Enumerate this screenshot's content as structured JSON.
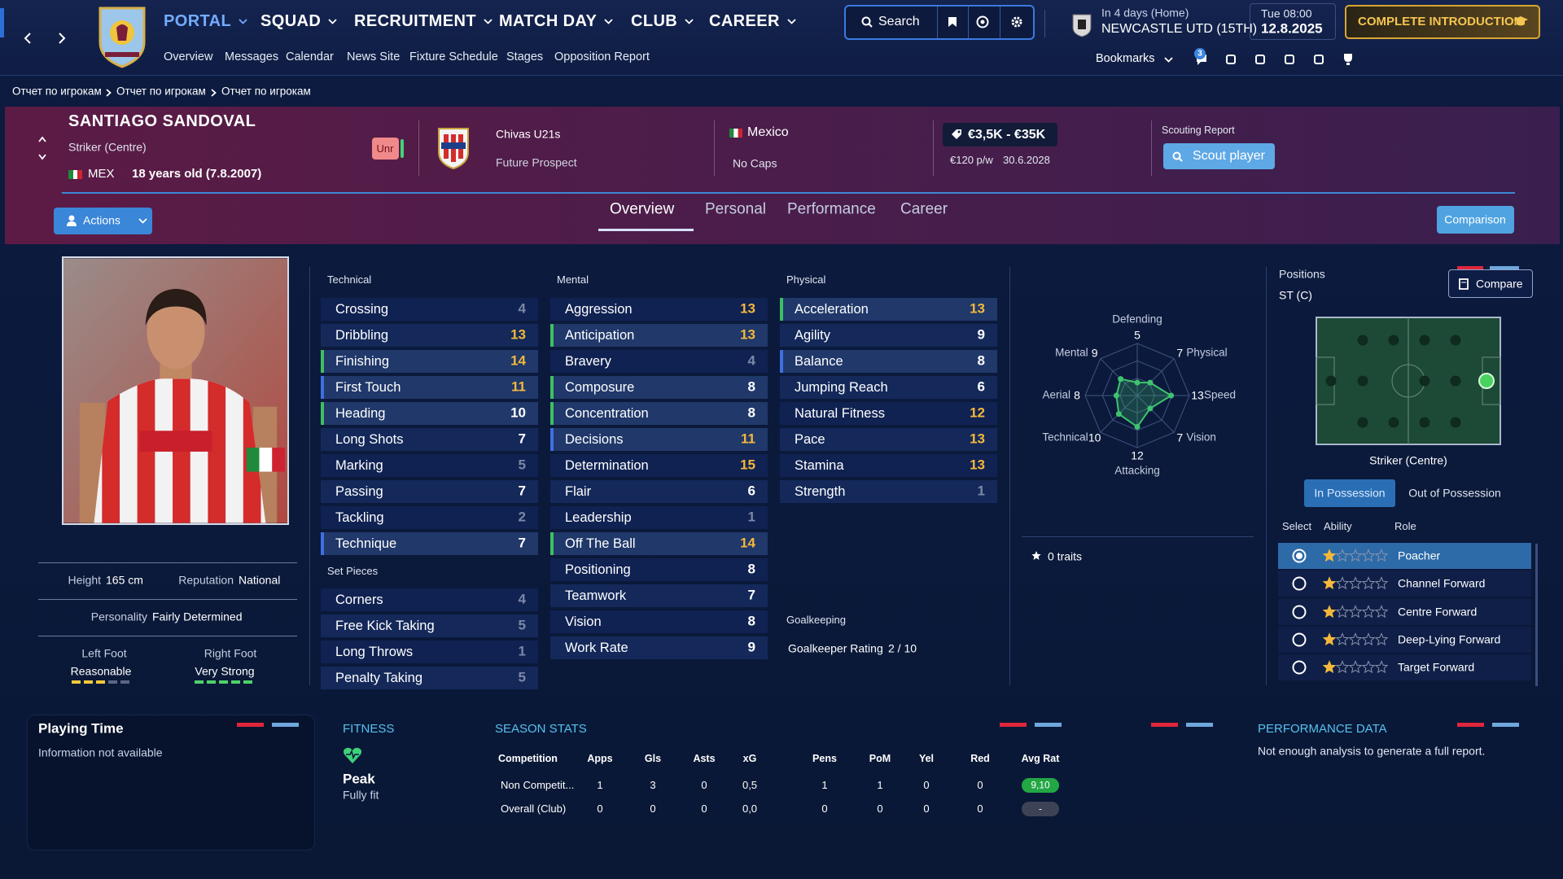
{
  "nav": {
    "menus": [
      "PORTAL",
      "SQUAD",
      "RECRUITMENT",
      "MATCH DAY",
      "CLUB",
      "CAREER"
    ],
    "submenu": [
      "Overview",
      "Messages",
      "Calendar",
      "News Site",
      "Fixture Schedule",
      "Stages",
      "Opposition Report"
    ],
    "search": "Search",
    "next_match": {
      "when": "In 4 days (Home)",
      "opponent": "NEWCASTLE UTD (15TH)"
    },
    "date": {
      "time": "Tue 08:00",
      "day": "12.8.2025"
    },
    "cta": "COMPLETE INTRODUCTION",
    "bookmarks": "Bookmarks",
    "notifications": 3
  },
  "breadcrumb": [
    "Отчет по игрокам",
    "Отчет по игрокам",
    "Отчет по игрокам"
  ],
  "player": {
    "name": "SANTIAGO SANDOVAL",
    "position": "Striker (Centre)",
    "nationality": "MEX",
    "age": "18 years old (7.8.2007)",
    "status": "Unr",
    "club": "Chivas U21s",
    "club_role": "Future Prospect",
    "country": "Mexico",
    "caps": "No Caps",
    "value": "€3,5K - €35K",
    "wage": "€120 p/w",
    "contract": "30.6.2028",
    "scouting_title": "Scouting Report",
    "scout_button": "Scout player"
  },
  "actions": "Actions",
  "tabs": [
    "Overview",
    "Personal",
    "Performance",
    "Career"
  ],
  "comparison": "Comparison",
  "info": {
    "height_label": "Height",
    "height": "165 cm",
    "reputation_label": "Reputation",
    "reputation": "National",
    "personality_label": "Personality",
    "personality": "Fairly Determined",
    "left_foot_label": "Left Foot",
    "left_foot": "Reasonable",
    "left_foot_level": 3,
    "right_foot_label": "Right Foot",
    "right_foot": "Very Strong",
    "right_foot_level": 5
  },
  "attributes": {
    "technical": {
      "title": "Technical",
      "items": [
        {
          "name": "Crossing",
          "value": 4
        },
        {
          "name": "Dribbling",
          "value": 13
        },
        {
          "name": "Finishing",
          "value": 14,
          "accent": "#3fbf62"
        },
        {
          "name": "First Touch",
          "value": 11,
          "accent": "#3f6fe0"
        },
        {
          "name": "Heading",
          "value": 10,
          "accent": "#3fbf62"
        },
        {
          "name": "Long Shots",
          "value": 7
        },
        {
          "name": "Marking",
          "value": 5
        },
        {
          "name": "Passing",
          "value": 7
        },
        {
          "name": "Tackling",
          "value": 2
        },
        {
          "name": "Technique",
          "value": 7,
          "accent": "#3f6fe0"
        }
      ]
    },
    "set_pieces": {
      "title": "Set Pieces",
      "items": [
        {
          "name": "Corners",
          "value": 4
        },
        {
          "name": "Free Kick Taking",
          "value": 5
        },
        {
          "name": "Long Throws",
          "value": 1
        },
        {
          "name": "Penalty Taking",
          "value": 5
        }
      ]
    },
    "mental": {
      "title": "Mental",
      "items": [
        {
          "name": "Aggression",
          "value": 13
        },
        {
          "name": "Anticipation",
          "value": 13,
          "accent": "#3fbf62"
        },
        {
          "name": "Bravery",
          "value": 4
        },
        {
          "name": "Composure",
          "value": 8,
          "accent": "#3fbf62"
        },
        {
          "name": "Concentration",
          "value": 8,
          "accent": "#3fbf62"
        },
        {
          "name": "Decisions",
          "value": 11,
          "accent": "#3f6fe0"
        },
        {
          "name": "Determination",
          "value": 15
        },
        {
          "name": "Flair",
          "value": 6
        },
        {
          "name": "Leadership",
          "value": 1
        },
        {
          "name": "Off The Ball",
          "value": 14,
          "accent": "#3fbf62"
        },
        {
          "name": "Positioning",
          "value": 8
        },
        {
          "name": "Teamwork",
          "value": 7
        },
        {
          "name": "Vision",
          "value": 8
        },
        {
          "name": "Work Rate",
          "value": 9
        }
      ]
    },
    "physical": {
      "title": "Physical",
      "items": [
        {
          "name": "Acceleration",
          "value": 13,
          "accent": "#3fbf62"
        },
        {
          "name": "Agility",
          "value": 9
        },
        {
          "name": "Balance",
          "value": 8,
          "accent": "#3f6fe0"
        },
        {
          "name": "Jumping Reach",
          "value": 6
        },
        {
          "name": "Natural Fitness",
          "value": 12
        },
        {
          "name": "Pace",
          "value": 13
        },
        {
          "name": "Stamina",
          "value": 13
        },
        {
          "name": "Strength",
          "value": 1
        }
      ]
    }
  },
  "goalkeeping": {
    "title": "Goalkeeping",
    "label": "Goalkeeper Rating",
    "value": "2 / 10"
  },
  "radar": {
    "rlim": [
      0,
      20
    ],
    "axes": [
      {
        "label": "Defending",
        "value": 5
      },
      {
        "label": "Physical",
        "value": 7
      },
      {
        "label": "Speed",
        "value": 13
      },
      {
        "label": "Vision",
        "value": 7
      },
      {
        "label": "Attacking",
        "value": 12
      },
      {
        "label": "Technical",
        "value": 10
      },
      {
        "label": "Aerial",
        "value": 8
      },
      {
        "label": "Mental",
        "value": 9
      }
    ]
  },
  "traits": "0 traits",
  "positions": {
    "title": "Positions",
    "code": "ST (C)",
    "compare": "Compare",
    "role_name": "Striker (Centre)",
    "modes": [
      "In Possession",
      "Out of Possession"
    ],
    "headers": [
      "Select",
      "Ability",
      "Role"
    ],
    "selected": 0,
    "stars_max": 5,
    "roles": [
      {
        "name": "Poacher",
        "stars": 1
      },
      {
        "name": "Channel Forward",
        "stars": 1
      },
      {
        "name": "Centre Forward",
        "stars": 1
      },
      {
        "name": "Deep-Lying Forward",
        "stars": 1
      },
      {
        "name": "Target Forward",
        "stars": 1
      }
    ]
  },
  "playing_time": {
    "title": "Playing Time",
    "text": "Information not available"
  },
  "fitness": {
    "title": "FITNESS",
    "status": "Peak",
    "detail": "Fully fit"
  },
  "season_stats": {
    "title": "SEASON STATS",
    "columns": [
      "Competition",
      "Apps",
      "Gls",
      "Asts",
      "xG",
      "Pens",
      "PoM",
      "Yel",
      "Red",
      "Avg Rat"
    ],
    "rows": [
      [
        "Non Competit...",
        1,
        3,
        0,
        "0,5",
        1,
        1,
        0,
        0,
        "9,10"
      ],
      [
        "Overall (Club)",
        0,
        0,
        0,
        "0,0",
        0,
        0,
        0,
        0,
        "-"
      ]
    ],
    "rating_colors": [
      "#22a744",
      "#3c4354"
    ]
  },
  "performance": {
    "title": "PERFORMANCE DATA",
    "text": "Not enough analysis to generate a full report."
  }
}
